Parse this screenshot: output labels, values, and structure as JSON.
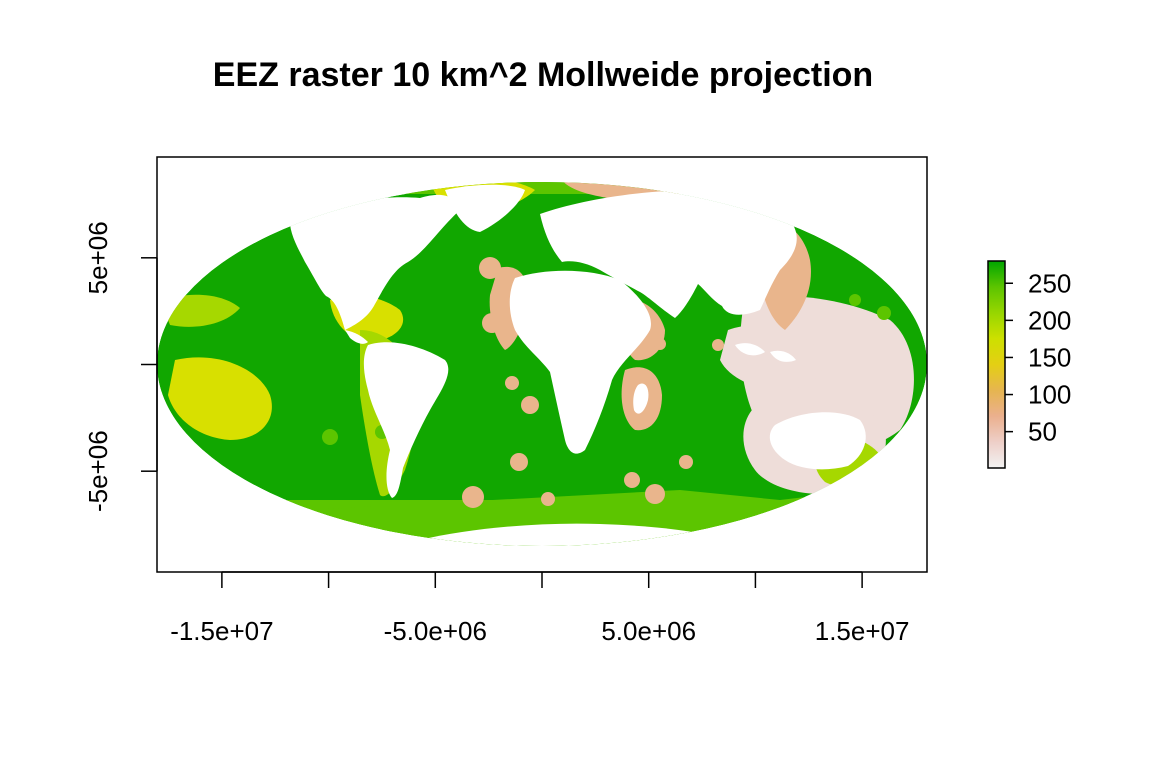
{
  "chart_data": {
    "type": "raster-map",
    "title": "EEZ raster 10 km^2 Mollweide projection",
    "projection": "Mollweide",
    "xlabel": "",
    "ylabel": "",
    "x_ticks": [
      {
        "value": -15000000,
        "label": "-1.5e+07"
      },
      {
        "value": -10000000,
        "label": ""
      },
      {
        "value": -5000000,
        "label": "-5.0e+06"
      },
      {
        "value": 0,
        "label": ""
      },
      {
        "value": 5000000,
        "label": "5.0e+06"
      },
      {
        "value": 10000000,
        "label": ""
      },
      {
        "value": 15000000,
        "label": "1.5e+07"
      }
    ],
    "y_ticks": [
      {
        "value": 5000000,
        "label": "5e+06"
      },
      {
        "value": 0,
        "label": ""
      },
      {
        "value": -5000000,
        "label": "-5e+06"
      }
    ],
    "xlim": [
      -18040096,
      18040096
    ],
    "ylim": [
      -9724600,
      9724600
    ],
    "legend": {
      "placement": "right",
      "range": [
        1,
        280
      ],
      "ticks": [
        {
          "value": 50,
          "label": "50"
        },
        {
          "value": 100,
          "label": "100"
        },
        {
          "value": 150,
          "label": "150"
        },
        {
          "value": 200,
          "label": "200"
        },
        {
          "value": 250,
          "label": "250"
        }
      ],
      "colors": [
        "#f2f2f2",
        "#eecfc8",
        "#ebb08e",
        "#e6b550",
        "#e4cf14",
        "#cde000",
        "#97d600",
        "#5cc400",
        "#00a600"
      ]
    },
    "colors": {
      "ocean_high": "#11a700",
      "ocean_southern": "#5cc500",
      "land": "#ffffff",
      "mid_low": "#e9b58c",
      "low": "#eeddd9",
      "yellow": "#d8e000",
      "lime": "#a6d800"
    }
  }
}
